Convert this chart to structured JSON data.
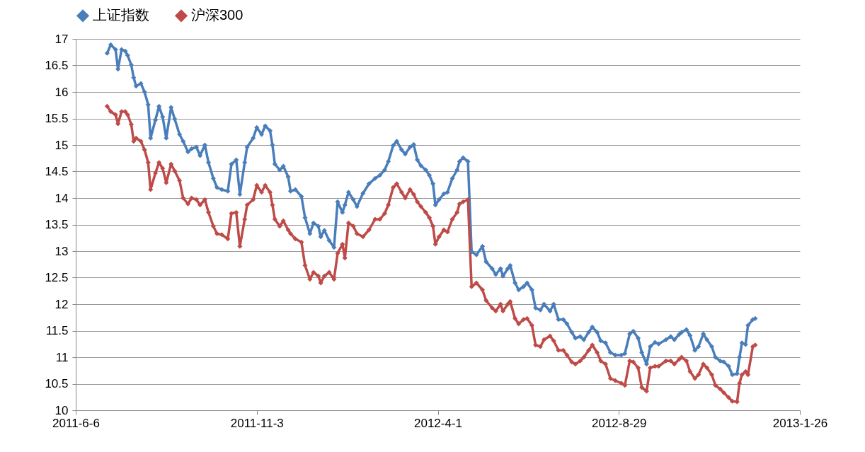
{
  "chart_data": {
    "type": "line",
    "legend": "top",
    "marker": "diamond",
    "line_style": "solid",
    "grid": "y",
    "xlim": [
      "2011-06-06",
      "2013-01-26"
    ],
    "xticks": [
      {
        "value": "2011-06-06",
        "label": "2011-6-6"
      },
      {
        "value": "2011-11-03",
        "label": "2011-11-3"
      },
      {
        "value": "2012-04-01",
        "label": "2012-4-1"
      },
      {
        "value": "2012-08-29",
        "label": "2012-8-29"
      },
      {
        "value": "2013-01-26",
        "label": "2013-1-26"
      }
    ],
    "ylim": [
      10,
      17
    ],
    "yticks": [
      10,
      10.5,
      11,
      11.5,
      12,
      12.5,
      13,
      13.5,
      14,
      14.5,
      15,
      15.5,
      16,
      16.5,
      17
    ],
    "x": [
      "2011-07-02",
      "2011-07-05",
      "2011-07-09",
      "2011-07-11",
      "2011-07-14",
      "2011-07-17",
      "2011-07-19",
      "2011-07-22",
      "2011-07-24",
      "2011-07-26",
      "2011-07-30",
      "2011-08-02",
      "2011-08-05",
      "2011-08-07",
      "2011-08-11",
      "2011-08-14",
      "2011-08-17",
      "2011-08-20",
      "2011-08-24",
      "2011-08-27",
      "2011-08-31",
      "2011-09-03",
      "2011-09-07",
      "2011-09-10",
      "2011-09-14",
      "2011-09-17",
      "2011-09-21",
      "2011-09-24",
      "2011-09-28",
      "2011-10-01",
      "2011-10-05",
      "2011-10-10",
      "2011-10-13",
      "2011-10-17",
      "2011-10-20",
      "2011-10-24",
      "2011-10-26",
      "2011-10-31",
      "2011-11-03",
      "2011-11-07",
      "2011-11-10",
      "2011-11-14",
      "2011-11-16",
      "2011-11-18",
      "2011-11-22",
      "2011-11-25",
      "2011-11-29",
      "2011-12-01",
      "2011-12-05",
      "2011-12-10",
      "2011-12-13",
      "2011-12-17",
      "2011-12-20",
      "2011-12-24",
      "2011-12-26",
      "2011-12-29",
      "2012-01-02",
      "2012-01-06",
      "2012-01-09",
      "2012-01-13",
      "2012-01-15",
      "2012-01-18",
      "2012-01-22",
      "2012-01-25",
      "2012-01-30",
      "2012-02-04",
      "2012-02-09",
      "2012-02-13",
      "2012-02-17",
      "2012-02-20",
      "2012-02-24",
      "2012-02-27",
      "2012-03-02",
      "2012-03-05",
      "2012-03-09",
      "2012-03-12",
      "2012-03-15",
      "2012-03-18",
      "2012-03-22",
      "2012-03-25",
      "2012-03-28",
      "2012-03-30",
      "2012-04-02",
      "2012-04-06",
      "2012-04-09",
      "2012-04-13",
      "2012-04-17",
      "2012-04-19",
      "2012-04-22",
      "2012-04-26",
      "2012-04-29",
      "2012-05-03",
      "2012-05-08",
      "2012-05-11",
      "2012-05-16",
      "2012-05-19",
      "2012-05-23",
      "2012-05-25",
      "2012-05-29",
      "2012-05-31",
      "2012-06-04",
      "2012-06-07",
      "2012-06-11",
      "2012-06-14",
      "2012-06-18",
      "2012-06-21",
      "2012-06-25",
      "2012-06-28",
      "2012-07-03",
      "2012-07-06",
      "2012-07-10",
      "2012-07-14",
      "2012-07-17",
      "2012-07-21",
      "2012-07-24",
      "2012-07-28",
      "2012-07-31",
      "2012-08-04",
      "2012-08-07",
      "2012-08-11",
      "2012-08-14",
      "2012-08-18",
      "2012-08-22",
      "2012-08-26",
      "2012-08-31",
      "2012-09-03",
      "2012-09-07",
      "2012-09-10",
      "2012-09-14",
      "2012-09-17",
      "2012-09-21",
      "2012-09-24",
      "2012-09-28",
      "2012-10-01",
      "2012-10-07",
      "2012-10-11",
      "2012-10-14",
      "2012-10-18",
      "2012-10-20",
      "2012-10-24",
      "2012-10-27",
      "2012-10-31",
      "2012-11-03",
      "2012-11-07",
      "2012-11-10",
      "2012-11-14",
      "2012-11-17",
      "2012-11-21",
      "2012-11-24",
      "2012-11-28",
      "2012-12-01",
      "2012-12-05",
      "2012-12-07",
      "2012-12-09",
      "2012-12-12",
      "2012-12-14",
      "2012-12-18",
      "2012-12-20"
    ],
    "series": [
      {
        "name": "上证指数",
        "color": "#4a7ebb",
        "values": [
          16.73,
          16.89,
          16.8,
          16.43,
          16.8,
          16.77,
          16.69,
          16.51,
          16.27,
          16.11,
          16.16,
          16.0,
          15.76,
          15.13,
          15.47,
          15.73,
          15.53,
          15.13,
          15.71,
          15.49,
          15.2,
          15.07,
          14.87,
          14.93,
          14.96,
          14.8,
          15.0,
          14.67,
          14.37,
          14.2,
          14.16,
          14.13,
          14.64,
          14.72,
          14.07,
          14.67,
          14.96,
          15.13,
          15.33,
          15.2,
          15.36,
          15.27,
          15.0,
          14.64,
          14.53,
          14.6,
          14.4,
          14.13,
          14.16,
          14.03,
          13.63,
          13.33,
          13.53,
          13.47,
          13.27,
          13.39,
          13.2,
          13.07,
          13.93,
          13.73,
          13.87,
          14.11,
          13.97,
          13.84,
          14.09,
          14.27,
          14.37,
          14.43,
          14.53,
          14.69,
          14.99,
          15.07,
          14.91,
          14.83,
          14.96,
          15.01,
          14.72,
          14.61,
          14.53,
          14.43,
          14.27,
          13.87,
          13.97,
          14.08,
          14.11,
          14.37,
          14.53,
          14.69,
          14.76,
          14.69,
          12.99,
          12.93,
          13.09,
          12.8,
          12.67,
          12.56,
          12.67,
          12.53,
          12.67,
          12.73,
          12.4,
          12.27,
          12.33,
          12.4,
          12.27,
          11.93,
          11.89,
          12.0,
          11.87,
          12.0,
          11.71,
          11.71,
          11.63,
          11.47,
          11.36,
          11.39,
          11.33,
          11.47,
          11.57,
          11.47,
          11.31,
          11.27,
          11.09,
          11.04,
          11.04,
          11.07,
          11.44,
          11.49,
          11.36,
          11.09,
          10.87,
          11.2,
          11.28,
          11.25,
          11.33,
          11.39,
          11.33,
          11.43,
          11.47,
          11.52,
          11.41,
          11.13,
          11.2,
          11.44,
          11.33,
          11.2,
          11.0,
          10.93,
          10.91,
          10.83,
          10.67,
          10.69,
          11.0,
          11.27,
          11.24,
          11.6,
          11.71,
          11.73
        ]
      },
      {
        "name": "沪深300",
        "color": "#be4b48",
        "values": [
          15.73,
          15.63,
          15.57,
          15.4,
          15.63,
          15.63,
          15.57,
          15.39,
          15.07,
          15.13,
          15.07,
          14.91,
          14.67,
          14.16,
          14.47,
          14.67,
          14.56,
          14.29,
          14.64,
          14.51,
          14.33,
          14.0,
          13.89,
          14.0,
          13.97,
          13.87,
          13.97,
          13.73,
          13.47,
          13.33,
          13.31,
          13.23,
          13.71,
          13.73,
          13.09,
          13.6,
          13.87,
          13.97,
          14.24,
          14.11,
          14.24,
          14.11,
          13.87,
          13.6,
          13.47,
          13.57,
          13.4,
          13.33,
          13.23,
          13.17,
          12.73,
          12.47,
          12.6,
          12.53,
          12.4,
          12.53,
          12.6,
          12.47,
          12.96,
          13.13,
          12.87,
          13.53,
          13.47,
          13.33,
          13.27,
          13.4,
          13.6,
          13.6,
          13.71,
          13.87,
          14.2,
          14.27,
          14.11,
          14.0,
          14.16,
          14.07,
          13.93,
          13.84,
          13.73,
          13.63,
          13.47,
          13.13,
          13.27,
          13.4,
          13.36,
          13.6,
          13.73,
          13.89,
          13.93,
          13.97,
          12.33,
          12.4,
          12.27,
          12.07,
          11.93,
          11.87,
          12.0,
          11.87,
          12.0,
          12.05,
          11.73,
          11.63,
          11.71,
          11.73,
          11.6,
          11.23,
          11.2,
          11.33,
          11.4,
          11.31,
          11.13,
          11.13,
          11.04,
          10.91,
          10.87,
          10.93,
          11.0,
          11.13,
          11.23,
          11.09,
          10.93,
          10.87,
          10.6,
          10.56,
          10.51,
          10.47,
          10.93,
          10.91,
          10.8,
          10.43,
          10.36,
          10.8,
          10.83,
          10.83,
          10.93,
          10.93,
          10.87,
          10.96,
          11.0,
          10.93,
          10.73,
          10.6,
          10.67,
          10.87,
          10.8,
          10.67,
          10.47,
          10.4,
          10.33,
          10.24,
          10.17,
          10.16,
          10.51,
          10.67,
          10.73,
          10.67,
          11.2,
          11.23
        ]
      }
    ]
  }
}
